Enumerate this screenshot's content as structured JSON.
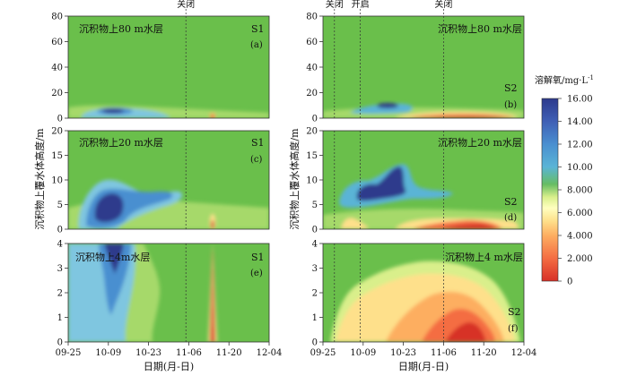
{
  "figure": {
    "y_axis_label": "沉积物上覆水体高度/m",
    "x_axis_label": "日期(月-日)",
    "x_ticks": [
      "09-25",
      "10-09",
      "10-23",
      "11-06",
      "11-20",
      "12-04"
    ],
    "colorbar": {
      "title": "溶解氧/mg·L",
      "title_sup": "-1",
      "tick_labels": [
        "16.00",
        "14.00",
        "12.00",
        "10.00",
        "8.000",
        "6.000",
        "4.000",
        "2.000",
        "0"
      ],
      "colors": [
        "#d73027",
        "#f46d43",
        "#fdae61",
        "#fee08b",
        "#ffffbf",
        "#d9ef8b",
        "#a6d96a",
        "#66bd63",
        "#5ab4d6",
        "#4a8fd0",
        "#3f5fb5",
        "#2d3a8c"
      ]
    }
  },
  "chart_data": [
    {
      "type": "heatmap",
      "site": "S1",
      "panel": "(a)",
      "title": "沉积物上80 m水层",
      "ylim": [
        0,
        80
      ],
      "y_ticks": [
        "0",
        "20",
        "40",
        "60",
        "80"
      ],
      "background_do": 8.5,
      "events": [
        {
          "date": "11-05",
          "label": "关闭"
        }
      ],
      "features": [
        {
          "date_range": [
            "10-02",
            "10-16"
          ],
          "depth_range": [
            2,
            8
          ],
          "do": 14.5
        },
        {
          "date_range": [
            "09-28",
            "10-30"
          ],
          "depth_range": [
            0,
            12
          ],
          "do": 10.5
        },
        {
          "date_range": [
            "11-13",
            "11-15"
          ],
          "depth_range": [
            0,
            4
          ],
          "do": 2.0
        }
      ]
    },
    {
      "type": "heatmap",
      "site": "S2",
      "panel": "(b)",
      "title": "沉积物上80 m水层",
      "ylim": [
        0,
        80
      ],
      "y_ticks": [
        "0",
        "20",
        "40",
        "60",
        "80"
      ],
      "background_do": 8.5,
      "events": [
        {
          "date": "09-29",
          "label": "关闭"
        },
        {
          "date": "10-08",
          "label": "开启"
        },
        {
          "date": "11-06",
          "label": "关闭"
        }
      ],
      "features": [
        {
          "date_range": [
            "10-08",
            "10-24"
          ],
          "depth_range": [
            4,
            12
          ],
          "do": 14.0
        },
        {
          "date_range": [
            "10-20",
            "12-02"
          ],
          "depth_range": [
            0,
            4
          ],
          "do": 3.0
        }
      ]
    },
    {
      "type": "heatmap",
      "site": "S1",
      "panel": "(c)",
      "title": "沉积物上20 m水层",
      "ylim": [
        0,
        20
      ],
      "y_ticks": [
        "0",
        "5",
        "10",
        "15",
        "20"
      ],
      "background_do": 8.5,
      "events": [
        {
          "date": "11-05",
          "label": ""
        }
      ],
      "features": [
        {
          "date_range": [
            "10-05",
            "10-14"
          ],
          "depth_range": [
            1.5,
            7
          ],
          "do": 14.5
        },
        {
          "date_range": [
            "09-28",
            "11-02"
          ],
          "depth_range": [
            0,
            12
          ],
          "do": 10.5
        },
        {
          "date_range": [
            "11-13",
            "11-15"
          ],
          "depth_range": [
            0,
            3
          ],
          "do": 2.0
        }
      ]
    },
    {
      "type": "heatmap",
      "site": "S2",
      "panel": "(d)",
      "title": "沉积物上20 m水层",
      "ylim": [
        0,
        20
      ],
      "y_ticks": [
        "0",
        "5",
        "10",
        "15",
        "20"
      ],
      "background_do": 8.5,
      "events": [
        {
          "date": "09-29",
          "label": ""
        },
        {
          "date": "10-08",
          "label": ""
        },
        {
          "date": "11-06",
          "label": ""
        }
      ],
      "features": [
        {
          "date_range": [
            "10-08",
            "10-22"
          ],
          "depth_range": [
            5,
            13
          ],
          "do": 14.0
        },
        {
          "date_range": [
            "10-20",
            "12-02"
          ],
          "depth_range": [
            0,
            3
          ],
          "do": 3.0
        }
      ]
    },
    {
      "type": "heatmap",
      "site": "S1",
      "panel": "(e)",
      "title": "沉积物上4m水层",
      "ylim": [
        0,
        4
      ],
      "y_ticks": [
        "0",
        "1",
        "2",
        "3",
        "4"
      ],
      "background_do": 8.5,
      "events": [
        {
          "date": "11-05",
          "label": ""
        }
      ],
      "features": [
        {
          "date_range": [
            "10-07",
            "10-13"
          ],
          "depth_range": [
            1.5,
            4
          ],
          "do": 14.0
        },
        {
          "date_range": [
            "09-25",
            "10-24"
          ],
          "depth_range": [
            0,
            4
          ],
          "do": 10.5
        },
        {
          "date_range": [
            "11-13",
            "11-15"
          ],
          "depth_range": [
            0,
            4
          ],
          "do": 1.0
        }
      ]
    },
    {
      "type": "heatmap",
      "site": "S2",
      "panel": "(f)",
      "title": "沉积物上4 m水层",
      "ylim": [
        0,
        4
      ],
      "y_ticks": [
        "0",
        "1",
        "2",
        "3",
        "4"
      ],
      "background_do": 8.5,
      "events": [
        {
          "date": "09-29",
          "label": ""
        },
        {
          "date": "10-08",
          "label": ""
        },
        {
          "date": "11-06",
          "label": ""
        }
      ],
      "features": [
        {
          "date_range": [
            "09-27",
            "12-02"
          ],
          "depth_range": [
            0,
            3.6
          ],
          "do": 4.0
        },
        {
          "date_range": [
            "11-06",
            "12-02"
          ],
          "depth_range": [
            0,
            2.2
          ],
          "do": 1.5
        }
      ]
    }
  ]
}
